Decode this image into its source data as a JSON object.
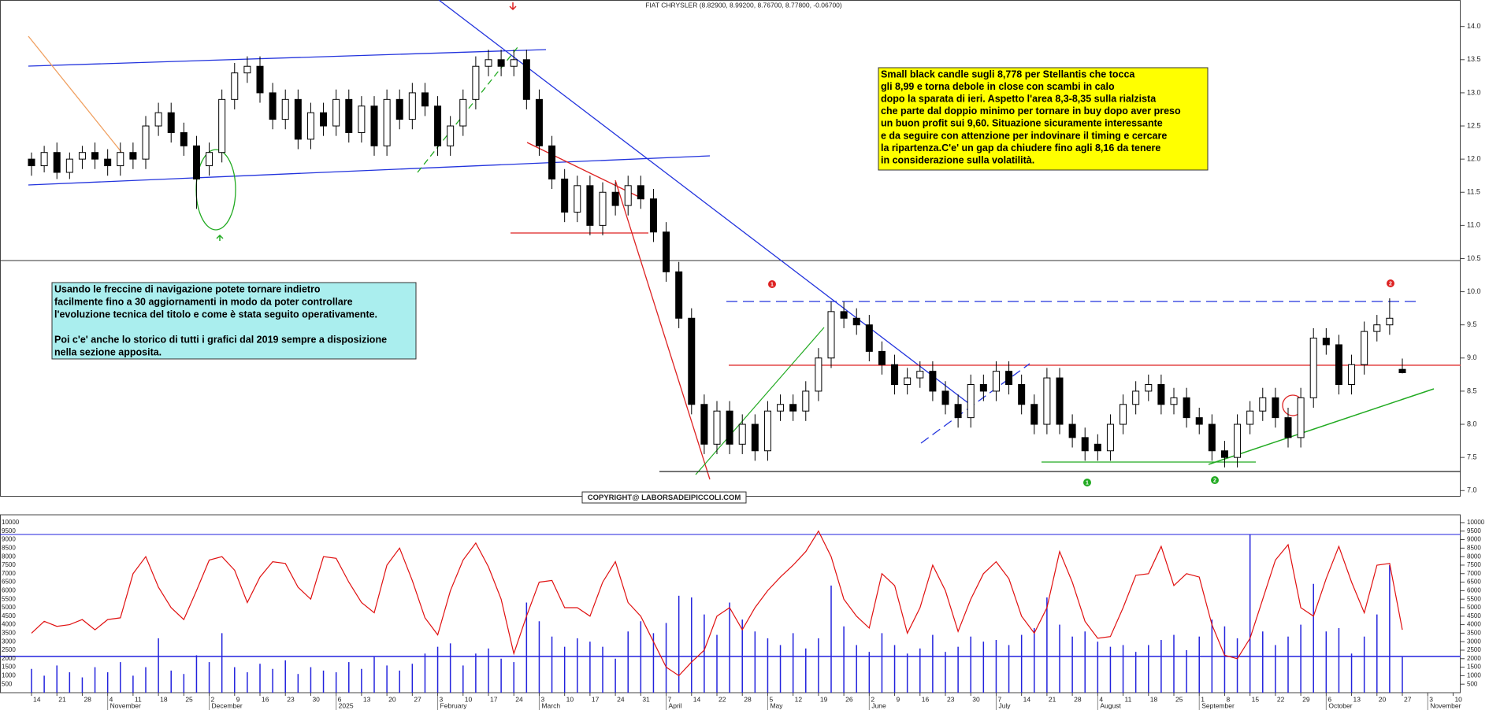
{
  "chart_data": [
    {
      "type": "candlestick",
      "title": "FIAT CHRYSLER (8.82900, 8.99200, 8.76700, 8.77800, -0.06700)",
      "open": [
        12.0,
        11.9,
        12.1,
        11.8,
        12.0,
        12.1,
        12.0,
        11.9,
        12.1,
        12.0,
        12.5,
        12.7,
        12.4,
        12.2,
        11.9,
        12.1,
        12.9,
        13.3,
        13.4,
        13.0,
        12.6,
        12.9,
        12.3,
        12.7,
        12.5,
        12.9,
        12.4,
        12.8,
        12.2,
        12.9,
        12.6,
        13.0,
        12.8,
        12.2,
        12.5,
        12.9,
        13.4,
        13.5,
        13.4,
        13.5,
        12.9,
        12.2,
        11.7,
        11.2,
        11.6,
        11.0,
        11.5,
        11.3,
        11.6,
        11.4,
        10.9,
        10.3,
        9.6,
        8.3,
        7.7,
        8.2,
        7.7,
        8.0,
        7.6,
        8.2,
        8.3,
        8.2,
        8.5,
        9.0,
        9.7,
        9.6,
        9.5,
        9.1,
        8.9,
        8.6,
        8.7,
        8.8,
        8.5,
        8.3,
        8.1,
        8.6,
        8.5,
        8.8,
        8.6,
        8.3,
        8.0,
        8.7,
        8.0,
        7.8,
        7.7,
        7.6,
        8.0,
        8.3,
        8.5,
        8.6,
        8.3,
        8.4,
        8.1,
        8.0,
        7.6,
        7.5,
        8.0,
        8.2,
        8.4,
        8.1,
        7.8,
        8.4,
        9.3,
        9.2,
        8.6,
        8.9,
        9.4,
        9.5,
        8.829
      ],
      "high": [
        12.1,
        12.2,
        12.25,
        12.1,
        12.2,
        12.25,
        12.15,
        12.25,
        12.25,
        12.65,
        12.85,
        12.85,
        12.55,
        12.35,
        12.25,
        13.05,
        13.45,
        13.55,
        13.55,
        13.15,
        13.05,
        13.05,
        12.85,
        12.85,
        13.05,
        13.05,
        12.95,
        12.95,
        13.05,
        13.05,
        13.15,
        13.15,
        12.95,
        12.65,
        13.05,
        13.55,
        13.65,
        13.65,
        13.65,
        13.65,
        13.05,
        12.35,
        11.85,
        11.75,
        11.75,
        11.65,
        11.65,
        11.75,
        11.75,
        11.55,
        11.05,
        10.45,
        9.75,
        8.45,
        8.35,
        8.35,
        8.15,
        8.15,
        8.35,
        8.45,
        8.45,
        8.65,
        9.15,
        9.85,
        9.85,
        9.75,
        9.65,
        9.25,
        9.05,
        8.85,
        8.95,
        8.95,
        8.65,
        8.45,
        8.75,
        8.75,
        8.95,
        8.95,
        8.75,
        8.45,
        8.85,
        8.85,
        8.15,
        7.95,
        7.85,
        8.15,
        8.45,
        8.65,
        8.75,
        8.75,
        8.55,
        8.55,
        8.25,
        8.15,
        7.75,
        8.15,
        8.35,
        8.55,
        8.55,
        8.25,
        8.55,
        9.45,
        9.45,
        9.35,
        9.05,
        9.55,
        9.65,
        9.9,
        8.992
      ],
      "low": [
        11.75,
        11.8,
        11.7,
        11.7,
        11.85,
        11.85,
        11.75,
        11.75,
        11.85,
        11.85,
        12.35,
        12.25,
        12.05,
        11.25,
        11.75,
        11.95,
        12.75,
        13.15,
        12.85,
        12.45,
        12.45,
        12.15,
        12.15,
        12.35,
        12.35,
        12.25,
        12.25,
        12.05,
        12.05,
        12.45,
        12.45,
        12.65,
        12.05,
        12.05,
        12.35,
        12.75,
        13.25,
        13.25,
        13.25,
        12.75,
        12.05,
        11.55,
        11.05,
        11.05,
        10.85,
        10.85,
        11.15,
        11.15,
        11.25,
        10.75,
        10.15,
        9.45,
        8.15,
        7.55,
        7.55,
        7.55,
        7.55,
        7.45,
        7.45,
        8.05,
        8.05,
        8.05,
        8.35,
        8.85,
        9.45,
        9.35,
        8.95,
        8.75,
        8.45,
        8.45,
        8.55,
        8.35,
        8.15,
        7.95,
        7.95,
        8.35,
        8.35,
        8.45,
        8.15,
        7.85,
        7.85,
        7.85,
        7.65,
        7.45,
        7.45,
        7.45,
        7.85,
        8.15,
        8.35,
        8.15,
        8.15,
        7.95,
        7.85,
        7.45,
        7.35,
        7.35,
        7.85,
        8.05,
        7.95,
        7.65,
        7.65,
        8.25,
        9.05,
        8.45,
        8.45,
        8.75,
        9.25,
        9.35,
        8.767
      ],
      "close": [
        11.9,
        12.1,
        11.8,
        12.0,
        12.1,
        12.0,
        11.9,
        12.1,
        12.0,
        12.5,
        12.7,
        12.4,
        12.2,
        11.7,
        12.1,
        12.9,
        13.3,
        13.4,
        13.0,
        12.6,
        12.9,
        12.3,
        12.7,
        12.5,
        12.9,
        12.4,
        12.8,
        12.2,
        12.9,
        12.6,
        13.0,
        12.8,
        12.2,
        12.5,
        12.9,
        13.4,
        13.5,
        13.4,
        13.5,
        12.9,
        12.2,
        11.7,
        11.2,
        11.6,
        11.0,
        11.5,
        11.3,
        11.6,
        11.4,
        10.9,
        10.3,
        9.6,
        8.3,
        7.7,
        8.2,
        7.7,
        8.0,
        7.6,
        8.2,
        8.3,
        8.2,
        8.5,
        9.0,
        9.7,
        9.6,
        9.5,
        9.1,
        8.9,
        8.6,
        8.7,
        8.8,
        8.5,
        8.3,
        8.1,
        8.6,
        8.5,
        8.8,
        8.6,
        8.3,
        8.0,
        8.7,
        8.0,
        7.8,
        7.6,
        7.6,
        8.0,
        8.3,
        8.5,
        8.6,
        8.3,
        8.4,
        8.1,
        8.0,
        7.6,
        7.5,
        8.0,
        8.2,
        8.4,
        8.1,
        7.8,
        8.4,
        9.3,
        9.2,
        8.6,
        8.9,
        9.4,
        9.5,
        9.6,
        8.778
      ],
      "ylim": [
        6.92,
        14.4
      ],
      "yticks": [
        {
          "value": 7,
          "label": "7.0"
        },
        {
          "value": 7.5,
          "label": "7.5"
        },
        {
          "value": 8,
          "label": "8.0"
        },
        {
          "value": 8.5,
          "label": "8.5"
        },
        {
          "value": 9,
          "label": "9.0"
        },
        {
          "value": 9.5,
          "label": "9.5"
        },
        {
          "value": 10,
          "label": "10.0"
        },
        {
          "value": 10.5,
          "label": "10.5"
        },
        {
          "value": 11,
          "label": "11.0"
        },
        {
          "value": 11.5,
          "label": "11.5"
        },
        {
          "value": 12,
          "label": "12.0"
        },
        {
          "value": 12.5,
          "label": "12.5"
        },
        {
          "value": 13,
          "label": "13.0"
        },
        {
          "value": 13.5,
          "label": "13.5"
        },
        {
          "value": 14,
          "label": "14.0"
        }
      ],
      "note_main": [
        "Small black candle sugli 8,778 per Stellantis che tocca",
        "gli 8,99 e torna debole in close con scambi in calo",
        "dopo la sparata di ieri. Aspetto l'area 8,3-8,35 sulla rialzista",
        "che parte dal doppio minimo per tornare in buy dopo aver preso",
        "un buon profit sui 9,60. Situazione sicuramente interessante",
        "e da seguire con attenzione per indovinare il timing e cercare",
        "la ripartenza.C'e' un gap da chiudere fino agli 8,16 da tenere",
        "in considerazione sulla volatilità."
      ],
      "note_info": [
        [
          "Usando le freccine di navigazione potete tornare indietro",
          "facilmente fino a 30 aggiornamenti in modo da poter controllare",
          "l'evoluzione tecnica del titolo e come è stata seguito operativamente."
        ],
        [
          "Poi c'e' anche lo storico di tutti i grafici dal 2019 sempre a disposizione",
          "nella sezione apposita."
        ]
      ],
      "copyright": "COPYRIGHT@ LABORSADEIPICCOLI.COM",
      "markers": [
        "1",
        "2",
        "1",
        "2"
      ]
    },
    {
      "type": "bar",
      "values": [
        1400,
        1000,
        1600,
        1200,
        900,
        1500,
        1200,
        1800,
        1000,
        1500,
        3200,
        1300,
        1100,
        2200,
        1800,
        3500,
        1500,
        1200,
        1700,
        1400,
        1900,
        1100,
        1500,
        1300,
        1200,
        1800,
        1400,
        2100,
        1600,
        1300,
        1700,
        2300,
        2700,
        2900,
        1600,
        2300,
        2600,
        2000,
        1800,
        5300,
        4200,
        3300,
        2700,
        3200,
        3000,
        2700,
        2000,
        3600,
        4200,
        3500,
        4100,
        5700,
        5600,
        4600,
        3400,
        5300,
        4300,
        3600,
        3200,
        2800,
        3500,
        2600,
        3200,
        6300,
        3900,
        2800,
        2400,
        3500,
        2800,
        2300,
        2600,
        3400,
        2400,
        2700,
        3300,
        3000,
        3100,
        2800,
        3400,
        3800,
        5600,
        4000,
        3300,
        3600,
        3000,
        2700,
        2800,
        2400,
        2800,
        3100,
        3400,
        2500,
        3300,
        4300,
        3900,
        3200,
        9300,
        3600,
        2800,
        3300,
        4000,
        6400,
        3600,
        3800,
        2300,
        3300,
        4600,
        7500,
        2100
      ],
      "color": "#2222dd",
      "line": {
        "values": [
          3500,
          4200,
          3900,
          4000,
          4300,
          3700,
          4300,
          4400,
          7000,
          8000,
          6200,
          5000,
          4300,
          6000,
          7800,
          8000,
          7200,
          5300,
          6800,
          7700,
          7600,
          6200,
          5500,
          8000,
          7900,
          6500,
          5300,
          4700,
          7500,
          8500,
          6600,
          4400,
          3400,
          6000,
          7800,
          8800,
          7400,
          5500,
          2300,
          4500,
          6500,
          6600,
          5000,
          5000,
          4500,
          6500,
          7700,
          5300,
          4500,
          3000,
          1500,
          1000,
          1800,
          2500,
          4500,
          5000,
          3700,
          5000,
          6000,
          6800,
          7500,
          8300,
          9500,
          8000,
          5500,
          4500,
          3800,
          7000,
          6300,
          3500,
          5000,
          7500,
          6000,
          3600,
          5500,
          7000,
          7700,
          6700,
          4500,
          3500,
          5000,
          8300,
          6500,
          4200,
          3200,
          3300,
          5000,
          6900,
          7000,
          8600,
          6300,
          7000,
          6800,
          4000,
          2200,
          2000,
          3200,
          5500,
          7800,
          8700,
          5000,
          4500,
          6700,
          8600,
          6500,
          4700,
          7500,
          7600,
          3700
        ],
        "color": "#e01010"
      },
      "ylim": [
        0,
        10460
      ],
      "yticks": [
        500,
        1000,
        1500,
        2000,
        2500,
        3000,
        3500,
        4000,
        4500,
        5000,
        5500,
        6000,
        6500,
        7000,
        7500,
        8000,
        8500,
        9000,
        9500,
        10000
      ],
      "xticks": [
        {
          "value": 0,
          "label": "14"
        },
        {
          "value": 2,
          "label": "21"
        },
        {
          "value": 4,
          "label": "28"
        },
        {
          "value": 6,
          "label": "4"
        },
        {
          "value": 8,
          "label": "11"
        },
        {
          "value": 10,
          "label": "18"
        },
        {
          "value": 12,
          "label": "25"
        },
        {
          "value": 14,
          "label": "2"
        },
        {
          "value": 16,
          "label": "9"
        },
        {
          "value": 18,
          "label": "16"
        },
        {
          "value": 20,
          "label": "23"
        },
        {
          "value": 22,
          "label": "30"
        },
        {
          "value": 24,
          "label": "6"
        },
        {
          "value": 26,
          "label": "13"
        },
        {
          "value": 28,
          "label": "20"
        },
        {
          "value": 30,
          "label": "27"
        },
        {
          "value": 32,
          "label": "3"
        },
        {
          "value": 34,
          "label": "10"
        },
        {
          "value": 36,
          "label": "17"
        },
        {
          "value": 38,
          "label": "24"
        },
        {
          "value": 40,
          "label": "3"
        },
        {
          "value": 42,
          "label": "10"
        },
        {
          "value": 44,
          "label": "17"
        },
        {
          "value": 46,
          "label": "24"
        },
        {
          "value": 48,
          "label": "31"
        },
        {
          "value": 50,
          "label": "7"
        },
        {
          "value": 52,
          "label": "14"
        },
        {
          "value": 54,
          "label": "22"
        },
        {
          "value": 56,
          "label": "28"
        },
        {
          "value": 58,
          "label": "5"
        },
        {
          "value": 60,
          "label": "12"
        },
        {
          "value": 62,
          "label": "19"
        },
        {
          "value": 64,
          "label": "26"
        },
        {
          "value": 66,
          "label": "2"
        },
        {
          "value": 68,
          "label": "9"
        },
        {
          "value": 70,
          "label": "16"
        },
        {
          "value": 72,
          "label": "23"
        },
        {
          "value": 74,
          "label": "30"
        },
        {
          "value": 76,
          "label": "7"
        },
        {
          "value": 78,
          "label": "14"
        },
        {
          "value": 80,
          "label": "21"
        },
        {
          "value": 82,
          "label": "28"
        },
        {
          "value": 84,
          "label": "4"
        },
        {
          "value": 86,
          "label": "11"
        },
        {
          "value": 88,
          "label": "18"
        },
        {
          "value": 90,
          "label": "25"
        },
        {
          "value": 92,
          "label": "1"
        },
        {
          "value": 94,
          "label": "8"
        },
        {
          "value": 96,
          "label": "15"
        },
        {
          "value": 98,
          "label": "22"
        },
        {
          "value": 100,
          "label": "29"
        },
        {
          "value": 102,
          "label": "6"
        },
        {
          "value": 104,
          "label": "13"
        },
        {
          "value": 106,
          "label": "20"
        },
        {
          "value": 108,
          "label": "27"
        },
        {
          "value": 110,
          "label": "3"
        },
        {
          "value": 112,
          "label": "10"
        }
      ],
      "xmonths": [
        {
          "value": 6,
          "label": "November"
        },
        {
          "value": 14,
          "label": "December"
        },
        {
          "value": 24,
          "label": "2025"
        },
        {
          "value": 32,
          "label": "February"
        },
        {
          "value": 40,
          "label": "March"
        },
        {
          "value": 50,
          "label": "April"
        },
        {
          "value": 58,
          "label": "May"
        },
        {
          "value": 66,
          "label": "June"
        },
        {
          "value": 76,
          "label": "July"
        },
        {
          "value": 84,
          "label": "August"
        },
        {
          "value": 92,
          "label": "September"
        },
        {
          "value": 102,
          "label": "October"
        },
        {
          "value": 110,
          "label": "November"
        }
      ]
    }
  ]
}
